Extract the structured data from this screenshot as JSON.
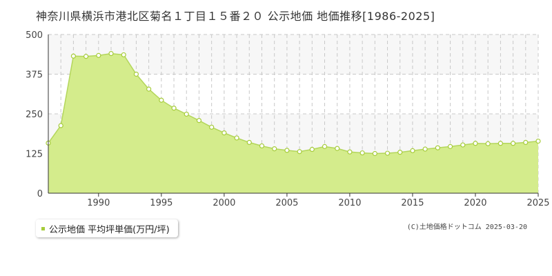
{
  "chart_data": {
    "type": "area",
    "title": "神奈川県横浜市港北区菊名１丁目１５番２０ 公示地価 地価推移[1986-2025]",
    "x": [
      1986,
      1987,
      1988,
      1989,
      1990,
      1991,
      1992,
      1993,
      1994,
      1995,
      1996,
      1997,
      1998,
      1999,
      2000,
      2001,
      2002,
      2003,
      2004,
      2005,
      2006,
      2007,
      2008,
      2009,
      2010,
      2011,
      2012,
      2013,
      2014,
      2015,
      2016,
      2017,
      2018,
      2019,
      2020,
      2021,
      2022,
      2023,
      2024,
      2025
    ],
    "series": [
      {
        "name": "公示地価 平均坪単価(万円/坪)",
        "values": [
          158,
          213,
          432,
          431,
          434,
          440,
          436,
          375,
          328,
          293,
          268,
          249,
          229,
          208,
          190,
          174,
          160,
          149,
          140,
          135,
          131,
          138,
          147,
          141,
          130,
          127,
          125,
          126,
          129,
          134,
          139,
          143,
          147,
          152,
          157,
          156,
          157,
          157,
          160,
          164
        ]
      }
    ],
    "xlim": [
      1986,
      2025
    ],
    "ylim": [
      0,
      500
    ],
    "x_ticks": [
      "1990",
      "1995",
      "2000",
      "2005",
      "2010",
      "2015",
      "2020",
      "2025"
    ],
    "y_ticks": [
      "0",
      "125",
      "250",
      "375",
      "500"
    ],
    "grid": true,
    "legend_position": "bottom-left",
    "colors": {
      "fill": "#d4ec8c",
      "line": "#b3d65a",
      "marker": "#a6cc3a",
      "band": "#f7f7f7",
      "grid": "#c8c8c8"
    }
  },
  "legend": {
    "label": "公示地価 平均坪単価(万円/坪)"
  },
  "copyright": "(C)土地価格ドットコム 2025-03-20"
}
